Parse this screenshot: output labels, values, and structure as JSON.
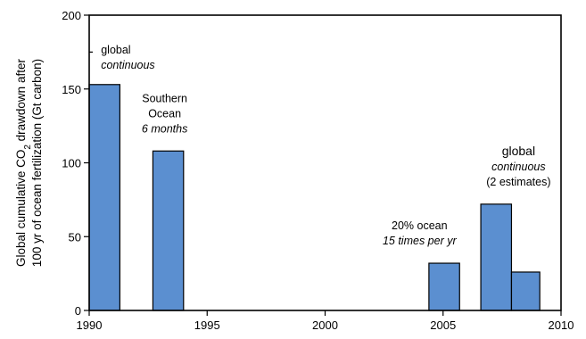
{
  "chart_data": {
    "type": "bar",
    "ylabel_line1": "Global cumulative CO",
    "ylabel_sub": "2",
    "ylabel_line1_end": " drawdown after",
    "ylabel_line2": "100 yr of ocean fertilization (Gt carbon)",
    "xlim": [
      1990,
      2010
    ],
    "ylim": [
      0,
      200
    ],
    "xticks": [
      1990,
      1995,
      2000,
      2005,
      2010
    ],
    "yticks": [
      0,
      50,
      100,
      150,
      200
    ],
    "bar_color": "#5b8fd0",
    "bars": [
      {
        "x0": 1990.0,
        "x1": 1991.3,
        "value": 153
      },
      {
        "x0": 1992.7,
        "x1": 1994.0,
        "value": 108
      },
      {
        "x0": 2004.4,
        "x1": 2005.7,
        "value": 32
      },
      {
        "x0": 2006.6,
        "x1": 2007.9,
        "value": 72
      },
      {
        "x0": 2007.9,
        "x1": 2009.1,
        "value": 26
      }
    ],
    "annotations": [
      {
        "id": "ann-global-1991",
        "lines": [
          {
            "text": "global",
            "italic": false
          },
          {
            "text": "continuous",
            "italic": true
          }
        ],
        "x": 1990.5,
        "y": 174,
        "anchor": "start"
      },
      {
        "id": "ann-southern-ocean",
        "lines": [
          {
            "text": "Southern",
            "italic": false
          },
          {
            "text": "Ocean",
            "italic": false
          },
          {
            "text": "6 months",
            "italic": true
          }
        ],
        "x": 1993.2,
        "y": 141,
        "anchor": "middle"
      },
      {
        "id": "ann-20pct-ocean",
        "lines": [
          {
            "text": "20% ocean",
            "italic": false
          },
          {
            "text": "15 times per yr",
            "italic": true
          }
        ],
        "x": 2004.0,
        "y": 55,
        "anchor": "middle"
      },
      {
        "id": "ann-global-2007",
        "lines": [
          {
            "text": "global",
            "italic": false,
            "big": true
          },
          {
            "text": "continuous",
            "italic": true
          },
          {
            "text": "(2 estimates)",
            "italic": false
          }
        ],
        "x": 2008.2,
        "y": 105,
        "anchor": "middle"
      }
    ]
  }
}
